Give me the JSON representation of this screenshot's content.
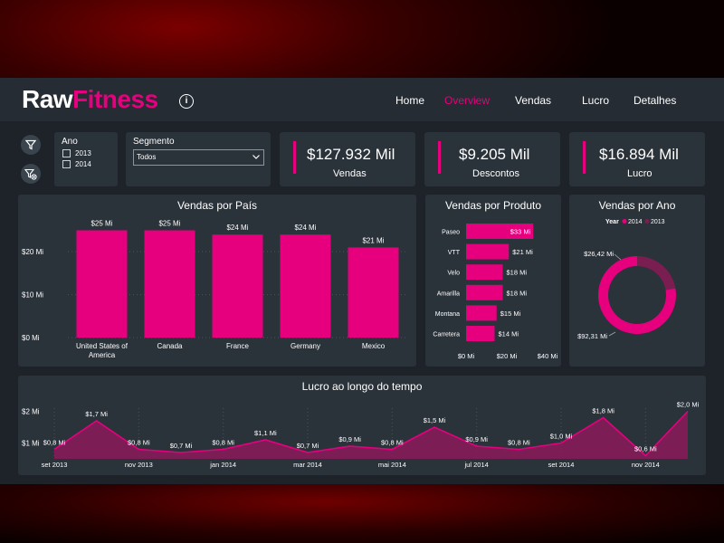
{
  "brand": {
    "part1": "Raw",
    "part2": "Fitness",
    "accent": "#e6007e"
  },
  "nav": {
    "home": "Home",
    "overview": "Overview",
    "vendas": "Vendas",
    "lucro": "Lucro",
    "detalhes": "Detalhes",
    "active": "Overview"
  },
  "filters": {
    "ano_label": "Ano",
    "ano_options": [
      "2013",
      "2014"
    ],
    "segmento_label": "Segmento",
    "segmento_value": "Todos"
  },
  "kpis": [
    {
      "value": "$127.932 Mil",
      "label": "Vendas"
    },
    {
      "value": "$9.205 Mil",
      "label": "Descontos"
    },
    {
      "value": "$16.894 Mil",
      "label": "Lucro"
    }
  ],
  "chart_data": [
    {
      "type": "bar",
      "title": "Vendas por País",
      "categories": [
        "United States of America",
        "Canada",
        "France",
        "Germany",
        "Mexico"
      ],
      "category_lines": [
        [
          "United States of",
          "America"
        ],
        [
          "Canada"
        ],
        [
          "France"
        ],
        [
          "Germany"
        ],
        [
          "Mexico"
        ]
      ],
      "values": [
        25,
        25,
        24,
        24,
        21
      ],
      "data_labels": [
        "$25 Mi",
        "$25 Mi",
        "$24 Mi",
        "$24 Mi",
        "$21 Mi"
      ],
      "yticks": [
        "$0 Mi",
        "$10 Mi",
        "$20 Mi"
      ],
      "ytick_values": [
        0,
        10,
        20
      ],
      "ylim": [
        0,
        27
      ],
      "color": "#e6007e"
    },
    {
      "type": "bar",
      "orientation": "horizontal",
      "title": "Vendas por Produto",
      "categories": [
        "Paseo",
        "VTT",
        "Velo",
        "Amarilla",
        "Montana",
        "Carretera"
      ],
      "values": [
        33,
        21,
        18,
        18,
        15,
        14
      ],
      "data_labels": [
        "$33 Mi",
        "$21 Mi",
        "$18 Mi",
        "$18 Mi",
        "$15 Mi",
        "$14 Mi"
      ],
      "xticks": [
        "$0 Mi",
        "$20 Mi",
        "$40 Mi"
      ],
      "xtick_values": [
        0,
        20,
        40
      ],
      "xlim": [
        0,
        40
      ],
      "color": "#e6007e"
    },
    {
      "type": "pie",
      "title": "Vendas por Ano",
      "legend_title": "Year",
      "labels": [
        "2014",
        "2013"
      ],
      "values": [
        92.31,
        26.42
      ],
      "data_labels": [
        "$92,31 Mi",
        "$26,42 Mi"
      ],
      "colors": [
        "#e6007e",
        "#7a1e52"
      ]
    },
    {
      "type": "area",
      "title": "Lucro ao longo do tempo",
      "x": [
        "set 2013",
        "out 2013",
        "nov 2013",
        "dez 2013",
        "jan 2014",
        "fev 2014",
        "mar 2014",
        "abr 2014",
        "mai 2014",
        "jun 2014",
        "jul 2014",
        "ago 2014",
        "set 2014",
        "out 2014",
        "nov 2014",
        "dez 2014"
      ],
      "values": [
        0.8,
        1.7,
        0.8,
        0.7,
        0.8,
        1.1,
        0.7,
        0.9,
        0.8,
        1.5,
        0.9,
        0.8,
        1.0,
        1.8,
        0.6,
        2.0
      ],
      "data_labels": [
        "$0,8 Mi",
        "$1,7 Mi",
        "$0,8 Mi",
        "$0,7 Mi",
        "$0,8 Mi",
        "$1,1 Mi",
        "$0,7 Mi",
        "$0,9 Mi",
        "$0,8 Mi",
        "$1,5 Mi",
        "$0,9 Mi",
        "$0,8 Mi",
        "$1,0 Mi",
        "$1,8 Mi",
        "$0,6 Mi",
        "$2,0 Mi"
      ],
      "xtick_labels": [
        "set 2013",
        "nov 2013",
        "jan 2014",
        "mar 2014",
        "mai 2014",
        "jul 2014",
        "set 2014",
        "nov 2014"
      ],
      "xtick_indices": [
        0,
        2,
        4,
        6,
        8,
        10,
        12,
        14
      ],
      "yticks": [
        "$1 Mi",
        "$2 Mi"
      ],
      "ytick_values": [
        1,
        2
      ],
      "ylim": [
        0.5,
        2.1
      ],
      "color": "#e6007e"
    }
  ]
}
